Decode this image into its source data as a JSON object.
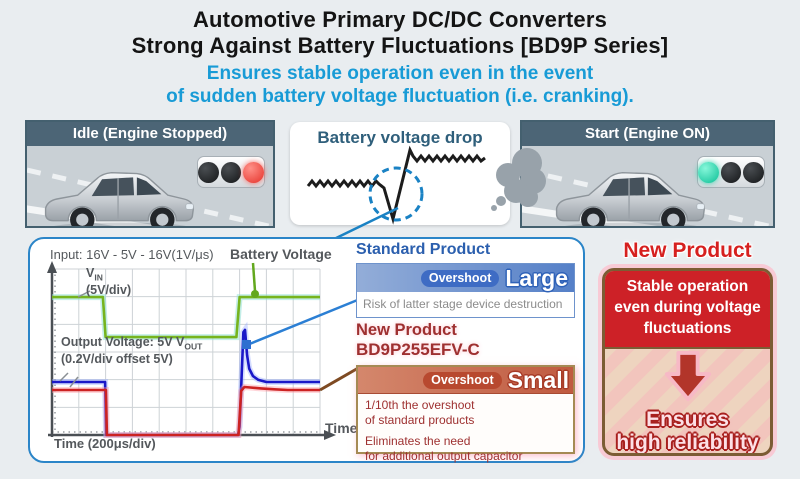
{
  "header": {
    "title_line1": "Automotive Primary DC/DC Converters",
    "title_line2": "Strong Against Battery Fluctuations [BD9P Series]",
    "subtitle_line1": "Ensures stable operation even in the event",
    "subtitle_line2": "of sudden battery voltage fluctuation (i.e. cranking)."
  },
  "scene": {
    "idle_panel": {
      "title": "Idle (Engine Stopped)",
      "traffic_light": "red"
    },
    "start_panel": {
      "title": "Start (Engine ON)",
      "traffic_light": "green"
    },
    "battery_drop_title": "Battery voltage drop"
  },
  "chart": {
    "input_label": "Input: 16V - 5V - 16V(1V/μs)",
    "battery_voltage_label": "Battery Voltage",
    "vin_v": "V",
    "vin_sub": "IN",
    "vin_div": "(5V/div)",
    "vout_prefix": "Output Voltage: 5V V",
    "vout_sub": "OUT",
    "vout_div": "(0.2V/div offset 5V)",
    "time_div_label": "Time (200μs/div)",
    "time_axis_label": "Time"
  },
  "standard_product": {
    "title": "Standard Product",
    "overshoot_label": "Overshoot",
    "overshoot_size": "Large",
    "description": "Risk of latter stage device destruction"
  },
  "new_product": {
    "title": "New Product",
    "part_number": "BD9P255EFV-C",
    "overshoot_label": "Overshoot",
    "overshoot_size": "Small",
    "benefit1_line1": "1/10th the overshoot",
    "benefit1_line2": "of standard products",
    "benefit2_line1": "Eliminates the need",
    "benefit2_line2": "for additional output capacitor"
  },
  "highlight": {
    "title": "New Product",
    "top_line1": "Stable operation",
    "top_line2": "even during voltage",
    "top_line3": "fluctuations",
    "bottom_line1": "Ensures",
    "bottom_line2": "high reliability"
  },
  "colors": {
    "subtitle_blue": "#189bd6",
    "panel_header": "#4c6576",
    "standard_blue": "#2b5fae",
    "new_product_red": "#9e3030",
    "highlight_red": "#cd2127",
    "chart_border_blue": "#2b85c8",
    "trace_green": "#76b41e",
    "trace_blue": "#1a18c8",
    "trace_red": "#cc2222"
  },
  "chart_data": {
    "type": "line",
    "title": "Input: 16V - 5V - 16V(1V/μs)",
    "xlabel": "Time",
    "x_axis": {
      "per_division": "200μs/div"
    },
    "y_axis": {
      "vin_scale": "5V/div",
      "vout_scale": "0.2V/div",
      "vout_offset": "5V"
    },
    "grid": true,
    "x_divisions": 10,
    "y_divisions": 6,
    "legend_position": "inline-callouts",
    "series": [
      {
        "name": "Battery Voltage (VIN)",
        "color": "#76b41e",
        "description": "Input steps 16V → 5V → 16V at 1V/μs",
        "points_pct": [
          [
            0,
            16.9
          ],
          [
            19,
            16.9
          ],
          [
            20,
            41
          ],
          [
            68.8,
            41
          ],
          [
            70,
            16.9
          ],
          [
            100,
            16.9
          ]
        ]
      },
      {
        "name": "Standard Product VOUT",
        "color": "#1a18c8",
        "description": "Large overshoot when input recovers",
        "points_pct": [
          [
            0,
            68.1
          ],
          [
            19.8,
            68.1
          ],
          [
            20.2,
            100
          ],
          [
            69.4,
            100
          ],
          [
            70.0,
            95
          ],
          [
            71.4,
            38
          ],
          [
            72.0,
            36.7
          ],
          [
            72.8,
            52
          ],
          [
            73.6,
            60
          ],
          [
            75,
            64.5
          ],
          [
            77,
            66.8
          ],
          [
            80,
            68.1
          ],
          [
            100,
            68.1
          ]
        ]
      },
      {
        "name": "New Product BD9P255EFV-C VOUT",
        "color": "#cc2222",
        "description": "Small overshoot, ~1/10th of standard products",
        "points_pct": [
          [
            0,
            72.9
          ],
          [
            20.1,
            72.9
          ],
          [
            20.5,
            100
          ],
          [
            69.6,
            100
          ],
          [
            70.6,
            73.5
          ],
          [
            71.8,
            71.1
          ],
          [
            74,
            71.4
          ],
          [
            78,
            71.9
          ],
          [
            83,
            72.5
          ],
          [
            88,
            72.9
          ],
          [
            100,
            72.9
          ]
        ]
      }
    ]
  }
}
